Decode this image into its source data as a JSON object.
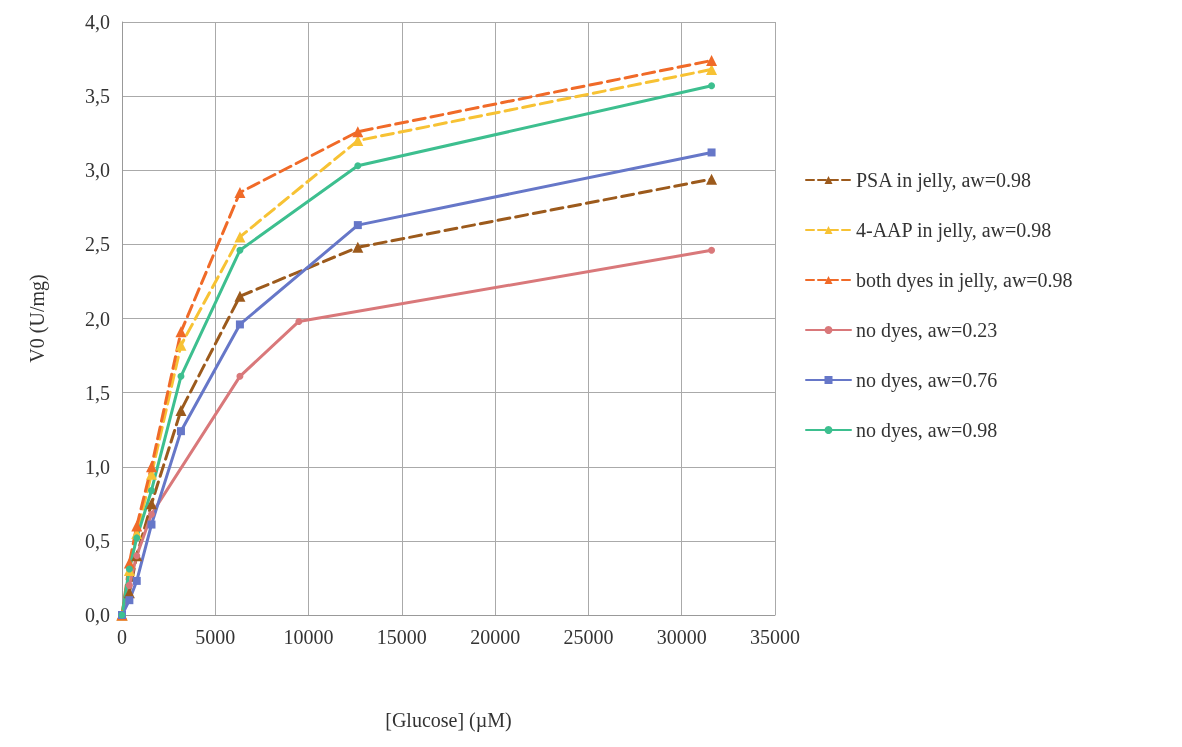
{
  "chart_data": {
    "type": "line",
    "xlabel": "[Glucose] (µM)",
    "ylabel": "V0 (U/mg)",
    "x": [
      0,
      395,
      790,
      1580,
      3160,
      6320,
      12640,
      31600
    ],
    "xlim": [
      0,
      35000
    ],
    "xticks": [
      0,
      5000,
      10000,
      15000,
      20000,
      25000,
      30000,
      35000
    ],
    "ylim": [
      0,
      4
    ],
    "yticks": [
      {
        "value": 0,
        "label": "0,0"
      },
      {
        "value": 0.5,
        "label": "0,5"
      },
      {
        "value": 1,
        "label": "1,0"
      },
      {
        "value": 1.5,
        "label": "1,5"
      },
      {
        "value": 2,
        "label": "2,0"
      },
      {
        "value": 2.5,
        "label": "2,5"
      },
      {
        "value": 3,
        "label": "3,0"
      },
      {
        "value": 3.5,
        "label": "3,5"
      },
      {
        "value": 4,
        "label": "4,0"
      }
    ],
    "grid": true,
    "legend": "right",
    "series": [
      {
        "name": "PSA in jelly, aw=0.98",
        "color": "#9c5a1c",
        "marker": "triangle",
        "line_style": "dashed",
        "values": [
          0,
          0.15,
          0.4,
          0.75,
          1.38,
          2.15,
          2.48,
          2.94
        ]
      },
      {
        "name": "4-AAP in jelly, aw=0.98",
        "color": "#f7c234",
        "marker": "triangle",
        "line_style": "dashed",
        "values": [
          0,
          0.3,
          0.55,
          0.95,
          1.82,
          2.55,
          3.2,
          3.68
        ]
      },
      {
        "name": "both dyes in jelly, aw=0.98",
        "color": "#f06a28",
        "marker": "triangle",
        "line_style": "dashed",
        "values": [
          0,
          0.35,
          0.6,
          1.0,
          1.91,
          2.85,
          3.26,
          3.74
        ]
      },
      {
        "name": "no dyes, aw=0.23",
        "color": "#d9787a",
        "marker": "circle",
        "line_style": "solid",
        "x": [
          0,
          395,
          790,
          1580,
          6320,
          9480,
          31600
        ],
        "values": [
          0,
          0.2,
          0.4,
          0.68,
          1.61,
          1.98,
          2.46
        ]
      },
      {
        "name": "no dyes, aw=0.76",
        "color": "#6677c8",
        "marker": "square",
        "line_style": "solid",
        "values": [
          0,
          0.1,
          0.23,
          0.61,
          1.24,
          1.96,
          2.63,
          3.12
        ]
      },
      {
        "name": "no dyes, aw=0.98",
        "color": "#3dbf8f",
        "marker": "circle",
        "line_style": "solid",
        "values": [
          0,
          0.31,
          0.52,
          0.84,
          1.61,
          2.46,
          3.03,
          3.57
        ]
      }
    ]
  }
}
